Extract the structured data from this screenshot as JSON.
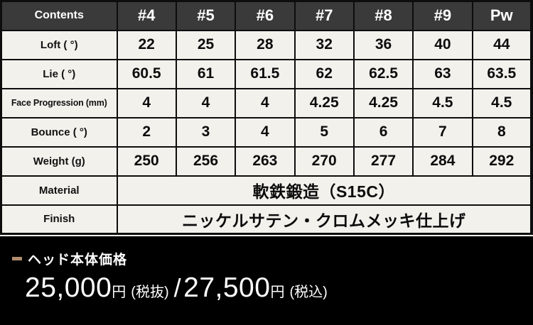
{
  "table": {
    "header": [
      "Contents",
      "#4",
      "#5",
      "#6",
      "#7",
      "#8",
      "#9",
      "Pw"
    ],
    "rows": [
      {
        "label": "Loft ( °)",
        "values": [
          "22",
          "25",
          "28",
          "32",
          "36",
          "40",
          "44"
        ]
      },
      {
        "label": "Lie ( °)",
        "values": [
          "60.5",
          "61",
          "61.5",
          "62",
          "62.5",
          "63",
          "63.5"
        ]
      },
      {
        "label": "Face Progression (mm)",
        "values": [
          "4",
          "4",
          "4",
          "4.25",
          "4.25",
          "4.5",
          "4.5"
        ]
      },
      {
        "label": "Bounce ( °)",
        "values": [
          "2",
          "3",
          "4",
          "5",
          "6",
          "7",
          "8"
        ]
      },
      {
        "label": "Weight (g)",
        "values": [
          "250",
          "256",
          "263",
          "270",
          "277",
          "284",
          "292"
        ]
      }
    ],
    "span_rows": [
      {
        "label": "Material",
        "value": "軟鉄鍛造（S15C）"
      },
      {
        "label": "Finish",
        "value": "ニッケルサテン・クロムメッキ仕上げ"
      }
    ]
  },
  "price": {
    "heading": "ヘッド本体価格",
    "price_excl": "25,000",
    "yen": "円",
    "tax_excl_label": "(税抜)",
    "separator": "/",
    "price_incl": "27,500",
    "tax_incl_label": "(税込)"
  },
  "colors": {
    "header_bg": "#3a3a3a",
    "cell_bg": "#f2f1ec",
    "border": "#0d0d0d",
    "price_section_bg": "#000000",
    "accent_dash": "#b18d6d",
    "text_light": "#ffffff",
    "text_dark": "#0c0c0c"
  },
  "chart_data": {
    "type": "table",
    "columns": [
      "Contents",
      "#4",
      "#5",
      "#6",
      "#7",
      "#8",
      "#9",
      "Pw"
    ],
    "rows": [
      [
        "Loft ( °)",
        22,
        25,
        28,
        32,
        36,
        40,
        44
      ],
      [
        "Lie ( °)",
        60.5,
        61,
        61.5,
        62,
        62.5,
        63,
        63.5
      ],
      [
        "Face Progression (mm)",
        4,
        4,
        4,
        4.25,
        4.25,
        4.5,
        4.5
      ],
      [
        "Bounce ( °)",
        2,
        3,
        4,
        5,
        6,
        7,
        8
      ],
      [
        "Weight (g)",
        250,
        256,
        263,
        270,
        277,
        284,
        292
      ],
      [
        "Material",
        "軟鉄鍛造（S15C）"
      ],
      [
        "Finish",
        "ニッケルサテン・クロムメッキ仕上げ"
      ]
    ],
    "footer_note": "ヘッド本体価格 25,000円(税抜) / 27,500円(税込)"
  }
}
